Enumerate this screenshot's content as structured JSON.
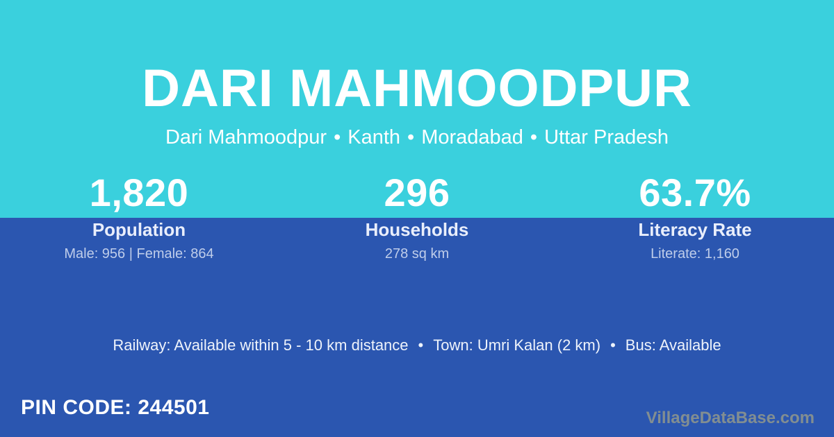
{
  "header": {
    "title": "DARI MAHMOODPUR",
    "subtitle": {
      "items": [
        "Dari Mahmoodpur",
        "Kanth",
        "Moradabad",
        "Uttar Pradesh"
      ],
      "separator": "•"
    }
  },
  "stats": [
    {
      "value": "1,820",
      "label": "Population",
      "detail": "Male: 956 | Female: 864"
    },
    {
      "value": "296",
      "label": "Households",
      "detail": "278 sq km"
    },
    {
      "value": "63.7%",
      "label": "Literacy Rate",
      "detail": "Literate: 1,160"
    }
  ],
  "amenities": {
    "items": [
      "Railway: Available within 5 - 10 km distance",
      "Town: Umri Kalan (2 km)",
      "Bus: Available"
    ],
    "separator": "•"
  },
  "footer": {
    "pin_code": "PIN CODE: 244501",
    "watermark": "VillageDataBase.com"
  },
  "colors": {
    "top_background": "#3ad0dd",
    "bottom_background": "#2b56b0",
    "text_primary": "#ffffff",
    "text_soft": "#e9eefb",
    "text_muted": "#bfcdea",
    "watermark": "#8a938f"
  }
}
